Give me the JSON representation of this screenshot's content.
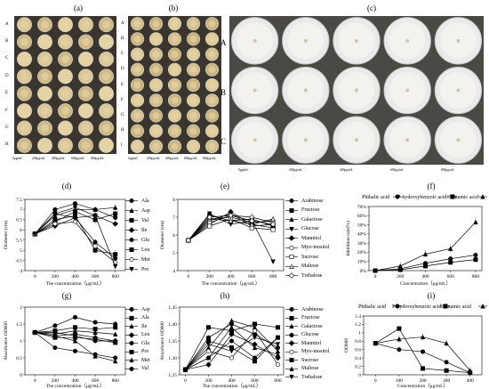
{
  "photo_panels": {
    "a": {
      "label": "(a)",
      "rows": [
        "A",
        "B",
        "C",
        "D",
        "E",
        "F",
        "G",
        "H"
      ],
      "concentrations": [
        "0μg/mL",
        "200μg/mL",
        "400μg/mL",
        "600μg/mL",
        "800μg/mL"
      ]
    },
    "b": {
      "label": "(b)",
      "rows": [
        "A",
        "B",
        "C",
        "D",
        "E",
        "F",
        "G",
        "H",
        "I"
      ],
      "concentrations": [
        "0μg/mL",
        "200μg/mL",
        "400μg/mL",
        "600μg/mL",
        "800μg/mL"
      ]
    },
    "c": {
      "label": "(c)",
      "rows": [
        "A",
        "B",
        "C"
      ],
      "concentrations": [
        "0μg/mL",
        "200μg/mL",
        "400μg/mL",
        "600μg/mL",
        "800μg/mL"
      ]
    }
  },
  "chart_data": [
    {
      "id": "d",
      "panel_label": "(d)",
      "type": "line",
      "xlabel": "The concentration（μg/mL）",
      "ylabel": "Diameter (cm)",
      "x": [
        0,
        200,
        400,
        600,
        800
      ],
      "xlim": [
        -100,
        900
      ],
      "ylim": [
        4,
        7.5
      ],
      "yticks": [
        4,
        4.5,
        5,
        5.5,
        6,
        6.5,
        7,
        7.5
      ],
      "series": [
        {
          "name": "Ala",
          "marker": "circle",
          "values": [
            5.8,
            7.0,
            7.3,
            7.0,
            6.6
          ]
        },
        {
          "name": "Asp",
          "marker": "triangle",
          "values": [
            5.8,
            6.7,
            7.0,
            7.0,
            7.1
          ]
        },
        {
          "name": "Val",
          "marker": "square",
          "values": [
            5.8,
            6.4,
            6.9,
            6.5,
            6.8
          ]
        },
        {
          "name": "Ile",
          "marker": "diamond",
          "values": [
            5.8,
            6.2,
            6.6,
            6.7,
            6.3
          ]
        },
        {
          "name": "Glu",
          "marker": "circle",
          "values": [
            5.8,
            6.8,
            6.6,
            5.4,
            4.6
          ]
        },
        {
          "name": "Leu",
          "marker": "square",
          "values": [
            5.8,
            6.5,
            6.7,
            5.0,
            4.8
          ]
        },
        {
          "name": "Met",
          "marker": "circle-open",
          "values": [
            5.8,
            6.3,
            6.4,
            5.2,
            4.4
          ]
        },
        {
          "name": "Pro",
          "marker": "triangle-down",
          "values": [
            5.8,
            6.8,
            7.1,
            6.7,
            4.2
          ]
        }
      ]
    },
    {
      "id": "e",
      "panel_label": "(e)",
      "type": "line",
      "xlabel": "The concentration（μg/mL）",
      "ylabel": "Diameter (cm)",
      "x": [
        0,
        200,
        400,
        600,
        800
      ],
      "xlim": [
        -100,
        900
      ],
      "ylim": [
        4,
        8
      ],
      "yticks": [
        4,
        5,
        6,
        7,
        8
      ],
      "series": [
        {
          "name": "Arabinose",
          "marker": "circle",
          "values": [
            5.7,
            6.9,
            7.0,
            6.7,
            6.8
          ]
        },
        {
          "name": "Fructose",
          "marker": "square",
          "values": [
            5.7,
            7.1,
            6.8,
            6.9,
            6.5
          ]
        },
        {
          "name": "Galactose",
          "marker": "triangle",
          "values": [
            5.7,
            6.8,
            7.2,
            6.5,
            6.6
          ]
        },
        {
          "name": "Glucose",
          "marker": "triangle-down",
          "values": [
            5.7,
            7.2,
            6.6,
            6.8,
            4.5
          ]
        },
        {
          "name": "Mannitol",
          "marker": "diamond",
          "values": [
            5.7,
            6.6,
            7.3,
            6.6,
            6.4
          ]
        },
        {
          "name": "Myo-inositol",
          "marker": "circle-open",
          "values": [
            5.7,
            6.7,
            7.1,
            7.0,
            6.7
          ]
        },
        {
          "name": "Sucrose",
          "marker": "square-open",
          "values": [
            5.7,
            6.5,
            6.9,
            6.4,
            6.3
          ]
        },
        {
          "name": "Maltose",
          "marker": "triangle-open",
          "values": [
            5.7,
            6.9,
            6.8,
            6.6,
            6.9
          ]
        },
        {
          "name": "Trehalose",
          "marker": "diamond-open",
          "values": [
            5.7,
            7.0,
            7.1,
            6.8,
            6.6
          ]
        }
      ]
    },
    {
      "id": "f",
      "panel_label": "(f)",
      "type": "line",
      "xlabel": "Concentration（μg/mL）",
      "ylabel": "Inhibition rate(%)",
      "x": [
        0,
        200,
        400,
        600,
        800
      ],
      "xlim": [
        -50,
        850
      ],
      "ylim": [
        0,
        70
      ],
      "yticks": [
        0,
        10,
        20,
        30,
        40,
        50,
        60,
        70
      ],
      "ytick_labels": [
        "0%",
        "10%",
        "20%",
        "30%",
        "40%",
        "50%",
        "60%",
        "70%"
      ],
      "series": [
        {
          "name": "Phthalic acid",
          "marker": "circle",
          "values": [
            0,
            2,
            8,
            13,
            17
          ]
        },
        {
          "name": "P-hydroxybenzoic acid",
          "marker": "square",
          "values": [
            0,
            1,
            5,
            9,
            12
          ]
        },
        {
          "name": "Cinnamic acid",
          "marker": "triangle",
          "values": [
            0,
            5,
            18,
            24,
            53
          ]
        }
      ]
    },
    {
      "id": "g",
      "panel_label": "(g)",
      "type": "line",
      "xlabel": "The concentration（μg/mL）",
      "ylabel": "Absorbance OD600",
      "x": [
        0,
        200,
        400,
        600,
        800
      ],
      "xlim": [
        -100,
        900
      ],
      "ylim": [
        0,
        2
      ],
      "yticks": [
        0,
        0.5,
        1.0,
        1.5,
        2.0
      ],
      "ytick_labels": [
        "0",
        "0.5",
        "1",
        "1.5",
        "2"
      ],
      "series": [
        {
          "name": "Asp",
          "marker": "circle",
          "values": [
            1.25,
            1.45,
            1.7,
            1.55,
            1.5
          ]
        },
        {
          "name": "Ala",
          "marker": "square",
          "values": [
            1.25,
            1.3,
            1.4,
            1.35,
            1.4
          ]
        },
        {
          "name": "Ile",
          "marker": "triangle",
          "values": [
            1.25,
            1.2,
            1.3,
            1.25,
            1.2
          ]
        },
        {
          "name": "Leu",
          "marker": "diamond",
          "values": [
            1.25,
            1.15,
            1.2,
            1.1,
            1.0
          ]
        },
        {
          "name": "Glu",
          "marker": "circle",
          "values": [
            1.25,
            1.25,
            1.15,
            1.0,
            1.0
          ]
        },
        {
          "name": "Pro",
          "marker": "square",
          "values": [
            1.25,
            1.1,
            1.1,
            1.05,
            0.95
          ]
        },
        {
          "name": "Met",
          "marker": "triangle",
          "values": [
            1.25,
            1.15,
            1.0,
            0.55,
            0.4
          ]
        },
        {
          "name": "Val",
          "marker": "circle",
          "values": [
            1.25,
            0.8,
            0.7,
            0.6,
            0.5
          ]
        }
      ]
    },
    {
      "id": "h",
      "panel_label": "(h)",
      "type": "line",
      "xlabel": "The concentration（μg/mL）",
      "ylabel": "Absorbance OD600",
      "x": [
        0,
        200,
        400,
        600,
        800
      ],
      "xlim": [
        -50,
        850
      ],
      "ylim": [
        1.25,
        1.45
      ],
      "yticks": [
        1.25,
        1.3,
        1.35,
        1.4,
        1.45
      ],
      "ytick_labels": [
        "1.25",
        "1.30",
        "1.35",
        "1.40",
        "1.45"
      ],
      "series": [
        {
          "name": "Arabinose",
          "marker": "circle",
          "values": [
            1.265,
            1.36,
            1.4,
            1.37,
            1.33
          ]
        },
        {
          "name": "Fructose",
          "marker": "square",
          "values": [
            1.265,
            1.39,
            1.38,
            1.4,
            1.39
          ]
        },
        {
          "name": "Galactose",
          "marker": "triangle",
          "values": [
            1.265,
            1.33,
            1.41,
            1.39,
            1.32
          ]
        },
        {
          "name": "Glucose",
          "marker": "circle",
          "values": [
            1.265,
            1.3,
            1.35,
            1.3,
            1.36
          ]
        },
        {
          "name": "Mannitol",
          "marker": "diamond",
          "values": [
            1.265,
            1.28,
            1.37,
            1.34,
            1.3
          ]
        },
        {
          "name": "Myo-inositol",
          "marker": "circle-open",
          "values": [
            1.265,
            1.32,
            1.3,
            1.38,
            1.28
          ]
        },
        {
          "name": "Sucrose",
          "marker": "square",
          "values": [
            1.265,
            1.35,
            1.33,
            1.29,
            1.36
          ]
        },
        {
          "name": "Maltose",
          "marker": "triangle",
          "values": [
            1.265,
            1.3,
            1.39,
            1.33,
            1.31
          ]
        },
        {
          "name": "Trehalose",
          "marker": "triangle-down",
          "values": [
            1.265,
            1.34,
            1.32,
            1.36,
            1.34
          ]
        }
      ]
    },
    {
      "id": "i",
      "panel_label": "(i)",
      "type": "line",
      "xlabel": "Concentration（μg/mL）",
      "ylabel": "OD600",
      "x": [
        0,
        100,
        200,
        300,
        400
      ],
      "xlim": [
        -50,
        450
      ],
      "ylim": [
        0,
        1.4
      ],
      "yticks": [
        0,
        0.2,
        0.4,
        0.6,
        0.8,
        1.0,
        1.2,
        1.4
      ],
      "ytick_labels": [
        "0",
        "0.2",
        "0.4",
        "0.6",
        "0.8",
        "1",
        "1.2",
        "1.4"
      ],
      "series": [
        {
          "name": "Phthalic acid",
          "marker": "circle",
          "values": [
            0.75,
            0.6,
            0.55,
            0.3,
            0.05
          ]
        },
        {
          "name": "P-hydroxybenzoic acid",
          "marker": "square",
          "values": [
            0.75,
            1.1,
            0.15,
            0.1,
            0.05
          ]
        },
        {
          "name": "Cinnamic acid",
          "marker": "triangle",
          "values": [
            0.75,
            0.85,
            0.9,
            0.75,
            0.1
          ]
        }
      ]
    }
  ]
}
